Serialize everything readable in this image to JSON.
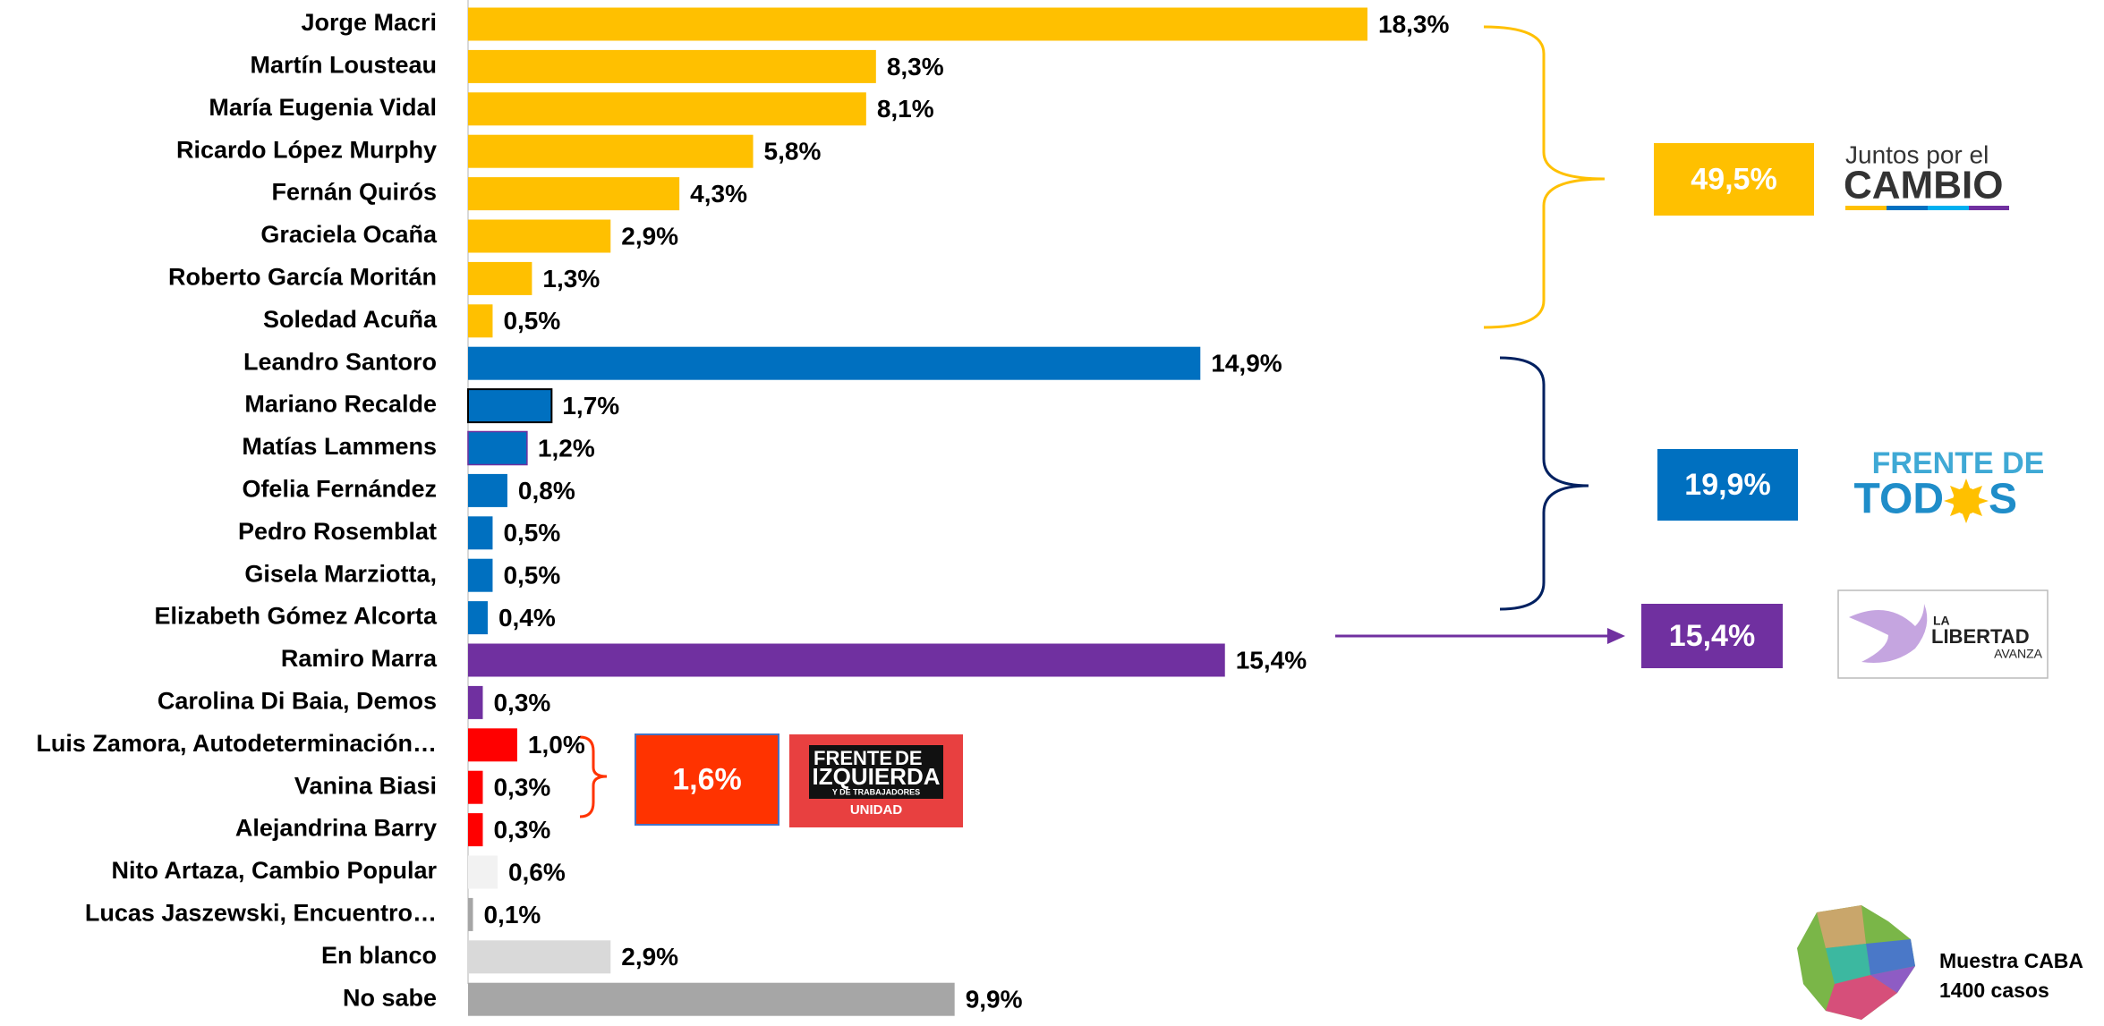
{
  "chart_data": {
    "type": "bar",
    "orientation": "horizontal",
    "categories": [
      "Jorge Macri",
      "Martín Lousteau",
      "María Eugenia Vidal",
      "Ricardo López Murphy",
      "Fernán Quirós",
      "Graciela Ocaña",
      "Roberto García Moritán",
      "Soledad Acuña",
      "Leandro Santoro",
      "Mariano Recalde",
      "Matías Lammens",
      "Ofelia Fernández",
      "Pedro Rosemblat",
      "Gisela Marziotta,",
      "Elizabeth Gómez Alcorta",
      "Ramiro Marra",
      "Carolina Di Baia, Demos",
      "Luis Zamora, Autodeterminación…",
      "Vanina Biasi",
      "Alejandrina Barry",
      "Nito Artaza, Cambio Popular",
      "Lucas Jaszewski, Encuentro…",
      "En blanco",
      "No sabe"
    ],
    "values": [
      18.3,
      8.3,
      8.1,
      5.8,
      4.3,
      2.9,
      1.3,
      0.5,
      14.9,
      1.7,
      1.2,
      0.8,
      0.5,
      0.5,
      0.4,
      15.4,
      0.3,
      1.0,
      0.3,
      0.3,
      0.6,
      0.1,
      2.9,
      9.9
    ],
    "value_labels": [
      "18,3%",
      "8,3%",
      "8,1%",
      "5,8%",
      "4,3%",
      "2,9%",
      "1,3%",
      "0,5%",
      "14,9%",
      "1,7%",
      "1,2%",
      "0,8%",
      "0,5%",
      "0,5%",
      "0,4%",
      "15,4%",
      "0,3%",
      "1,0%",
      "0,3%",
      "0,3%",
      "0,6%",
      "0,1%",
      "2,9%",
      "9,9%"
    ],
    "colors": [
      "#FFC000",
      "#FFC000",
      "#FFC000",
      "#FFC000",
      "#FFC000",
      "#FFC000",
      "#FFC000",
      "#FFC000",
      "#0070C0",
      "#0070C0",
      "#0070C0",
      "#0070C0",
      "#0070C0",
      "#0070C0",
      "#0070C0",
      "#7030A0",
      "#7030A0",
      "#FF0000",
      "#FF0000",
      "#FF0000",
      "#F2F2F2",
      "#A6A6A6",
      "#D9D9D9",
      "#A6A6A6"
    ],
    "groups": [
      {
        "value": 49.5,
        "label": "49,5%",
        "color": "#FFC000"
      },
      {
        "value": 19.9,
        "label": "19,9%",
        "color": "#0070C0"
      },
      {
        "value": 15.4,
        "label": "15,4%",
        "color": "#7030A0"
      },
      {
        "value": 1.6,
        "label": "1,6%",
        "color": "#FF3300"
      }
    ]
  },
  "logos": {
    "juntos": [
      "Juntos por el",
      "CAMBIO"
    ],
    "todos": [
      "FRENTE DE",
      "TOD",
      "S"
    ],
    "libertad": [
      "LA",
      "LIBERTAD",
      "AVANZA"
    ],
    "izquierda": [
      "FRENTE",
      "DE",
      "IZQUIERDA",
      "Y DE TRABAJADORES",
      "UNIDAD"
    ]
  },
  "note": [
    "Muestra CABA",
    "1400 casos"
  ]
}
